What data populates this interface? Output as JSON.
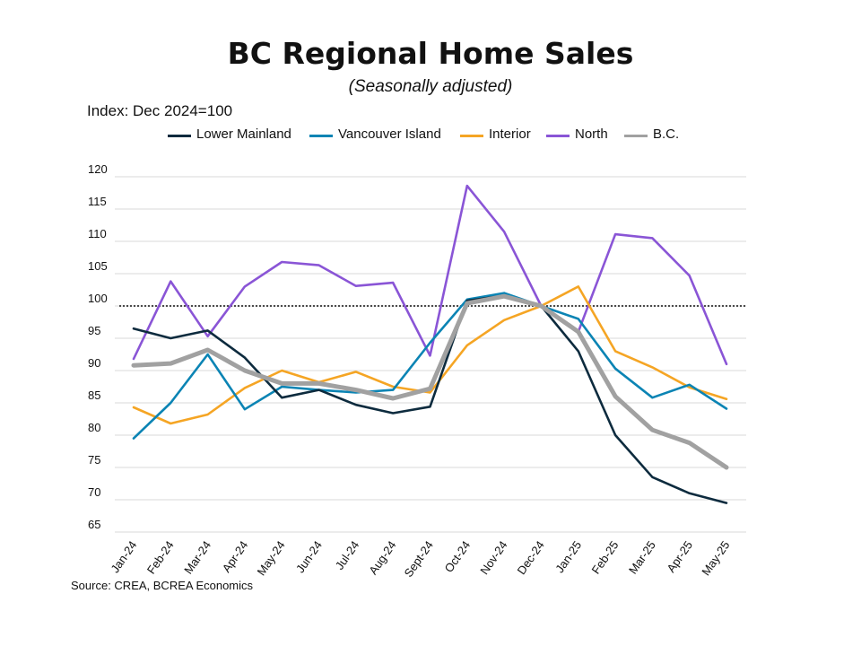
{
  "chart_data": {
    "type": "line",
    "title": "BC Regional Home Sales",
    "subtitle": "(Seasonally adjusted)",
    "ylabel": "Index: Dec 2024=100",
    "xlabel": "",
    "source": "Source: CREA, BCREA Economics",
    "categories": [
      "Jan-24",
      "Feb-24",
      "Mar-24",
      "Apr-24",
      "May-24",
      "Jun-24",
      "Jul-24",
      "Aug-24",
      "Sept-24",
      "Oct-24",
      "Nov-24",
      "Dec-24",
      "Jan-25",
      "Feb-25",
      "Mar-25",
      "Apr-25",
      "May-25"
    ],
    "yticks": [
      "120",
      "115",
      "110",
      "105",
      "100",
      "95",
      "90",
      "85",
      "80",
      "75",
      "70",
      "65"
    ],
    "ylim": [
      65,
      120
    ],
    "reference_line": 100,
    "grid": true,
    "legend_position": "top",
    "series": [
      {
        "name": "Lower Mainland",
        "color": "#0d2b3e",
        "values": [
          96.5,
          95.0,
          96.2,
          92.0,
          85.8,
          87.0,
          84.7,
          83.4,
          84.4,
          100.8,
          101.6,
          100.0,
          93.0,
          80.0,
          73.5,
          71.0,
          69.5
        ]
      },
      {
        "name": "Vancouver Island",
        "color": "#0b84b4",
        "values": [
          79.5,
          85.0,
          92.5,
          84.0,
          87.5,
          87.0,
          86.6,
          87.0,
          94.3,
          101.0,
          102.0,
          100.0,
          98.0,
          90.3,
          85.8,
          87.8,
          84.1
        ]
      },
      {
        "name": "Interior",
        "color": "#f5a524",
        "values": [
          84.3,
          81.8,
          83.2,
          87.3,
          90.0,
          88.2,
          89.8,
          87.5,
          86.6,
          93.9,
          97.8,
          100.0,
          103.0,
          93.0,
          90.5,
          87.4,
          85.6
        ]
      },
      {
        "name": "North",
        "color": "#8a55d6",
        "values": [
          91.8,
          103.8,
          95.3,
          103.0,
          106.8,
          106.3,
          103.1,
          103.6,
          92.3,
          118.6,
          111.5,
          100.0,
          96.0,
          111.1,
          110.5,
          104.7,
          91.0
        ]
      },
      {
        "name": "B.C.",
        "color": "#a1a1a1",
        "values": [
          90.8,
          91.1,
          93.2,
          90.0,
          88.0,
          88.0,
          87.0,
          85.7,
          87.2,
          100.4,
          101.5,
          100.0,
          96.0,
          86.0,
          80.8,
          78.8,
          75.0
        ]
      }
    ]
  }
}
